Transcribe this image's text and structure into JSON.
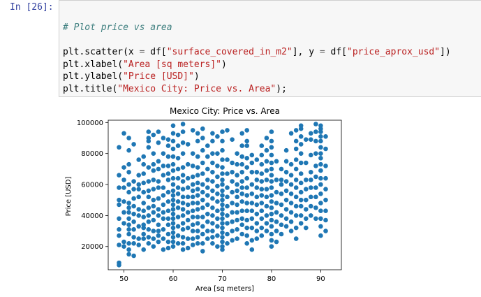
{
  "cell": {
    "prompt": "In [26]:"
  },
  "code": {
    "comment": "# Plot price vs area",
    "line2": {
      "pre": "plt.scatter(x ",
      "eq1": "=",
      "mid1": " df[",
      "s1": "\"surface_covered_in_m2\"",
      "mid2": "], y ",
      "eq2": "=",
      "mid3": " df[",
      "s2": "\"price_aprox_usd\"",
      "post": "])"
    },
    "line3": {
      "pre": "plt.xlabel(",
      "s": "\"Area [sq meters]\"",
      "post": ")"
    },
    "line4": {
      "pre": "plt.ylabel(",
      "s": "\"Price [USD]\"",
      "post": ")"
    },
    "line5": {
      "pre": "plt.title(",
      "s": "\"Mexico City: Price vs. Area\"",
      "post": ");"
    }
  },
  "colors": {
    "marker": "#1f77b4"
  },
  "chart_data": {
    "type": "scatter",
    "title": "Mexico City: Price vs. Area",
    "xlabel": "Area [sq meters]",
    "ylabel": "Price [USD]",
    "xlim": [
      46.8,
      94.2
    ],
    "ylim": [
      5000,
      101500
    ],
    "xticks": [
      50,
      60,
      70,
      80,
      90
    ],
    "yticks": [
      20000,
      40000,
      60000,
      80000,
      100000
    ],
    "xtick_labels": [
      "50",
      "60",
      "70",
      "80",
      "90"
    ],
    "ytick_labels": [
      "20000",
      "40000",
      "60000",
      "80000",
      "100000"
    ],
    "grid": false,
    "x": [
      49,
      49,
      49,
      49,
      49,
      49,
      49,
      49,
      49,
      49,
      49,
      50,
      50,
      50,
      50,
      50,
      50,
      50,
      50,
      50,
      51,
      51,
      51,
      51,
      51,
      51,
      51,
      51,
      51,
      51,
      51,
      51,
      51,
      51,
      51,
      51,
      52,
      52,
      52,
      52,
      52,
      52,
      52,
      52,
      52,
      52,
      52,
      53,
      53,
      53,
      53,
      53,
      53,
      53,
      53,
      53,
      53,
      54,
      54,
      54,
      54,
      54,
      54,
      54,
      54,
      54,
      54,
      54,
      54,
      54,
      55,
      55,
      55,
      55,
      55,
      55,
      55,
      55,
      55,
      55,
      55,
      55,
      55,
      55,
      56,
      56,
      56,
      56,
      56,
      56,
      56,
      56,
      56,
      56,
      56,
      56,
      56,
      57,
      57,
      57,
      57,
      57,
      57,
      57,
      57,
      57,
      57,
      57,
      57,
      57,
      58,
      58,
      58,
      58,
      58,
      58,
      58,
      58,
      58,
      58,
      58,
      58,
      59,
      59,
      59,
      59,
      59,
      59,
      59,
      59,
      59,
      59,
      59,
      59,
      59,
      59,
      60,
      60,
      60,
      60,
      60,
      60,
      60,
      60,
      60,
      60,
      60,
      60,
      60,
      60,
      60,
      60,
      60,
      60,
      60,
      60,
      60,
      60,
      61,
      61,
      61,
      61,
      61,
      61,
      61,
      61,
      61,
      61,
      61,
      61,
      61,
      62,
      62,
      62,
      62,
      62,
      62,
      62,
      62,
      62,
      62,
      62,
      62,
      62,
      62,
      62,
      62,
      62,
      63,
      63,
      63,
      63,
      63,
      63,
      63,
      63,
      63,
      63,
      63,
      64,
      64,
      64,
      64,
      64,
      64,
      64,
      64,
      64,
      64,
      64,
      64,
      64,
      64,
      65,
      65,
      65,
      65,
      65,
      65,
      65,
      65,
      65,
      65,
      65,
      65,
      65,
      65,
      65,
      66,
      66,
      66,
      66,
      66,
      66,
      66,
      66,
      66,
      66,
      66,
      66,
      66,
      66,
      67,
      67,
      67,
      67,
      67,
      67,
      67,
      67,
      67,
      67,
      67,
      68,
      68,
      68,
      68,
      68,
      68,
      68,
      68,
      68,
      68,
      68,
      68,
      68,
      68,
      69,
      69,
      69,
      69,
      69,
      69,
      69,
      69,
      69,
      69,
      69,
      69,
      70,
      70,
      70,
      70,
      70,
      70,
      70,
      70,
      70,
      70,
      70,
      70,
      70,
      70,
      70,
      70,
      70,
      70,
      70,
      70,
      70,
      70,
      71,
      71,
      71,
      71,
      71,
      71,
      71,
      71,
      71,
      71,
      72,
      72,
      72,
      72,
      72,
      72,
      72,
      72,
      72,
      72,
      73,
      73,
      73,
      73,
      73,
      73,
      73,
      73,
      73,
      73,
      73,
      74,
      74,
      74,
      74,
      74,
      74,
      74,
      74,
      74,
      74,
      74,
      74,
      74,
      75,
      75,
      75,
      75,
      75,
      75,
      75,
      75,
      75,
      75,
      75,
      75,
      75,
      75,
      76,
      76,
      76,
      76,
      76,
      76,
      76,
      76,
      76,
      76,
      76,
      77,
      77,
      77,
      77,
      77,
      77,
      77,
      77,
      77,
      77,
      78,
      78,
      78,
      78,
      78,
      78,
      78,
      78,
      78,
      78,
      78,
      78,
      79,
      79,
      79,
      79,
      79,
      79,
      79,
      79,
      79,
      79,
      79,
      80,
      80,
      80,
      80,
      80,
      80,
      80,
      80,
      80,
      80,
      80,
      80,
      80,
      80,
      80,
      80,
      80,
      80,
      81,
      81,
      81,
      81,
      81,
      81,
      81,
      81,
      82,
      82,
      82,
      82,
      82,
      82,
      82,
      82,
      83,
      83,
      83,
      83,
      83,
      83,
      83,
      83,
      83,
      84,
      84,
      84,
      84,
      84,
      84,
      84,
      84,
      84,
      85,
      85,
      85,
      85,
      85,
      85,
      85,
      85,
      85,
      85,
      85,
      85,
      86,
      86,
      86,
      86,
      86,
      86,
      86,
      86,
      86,
      86,
      86,
      86,
      86,
      87,
      87,
      87,
      87,
      87,
      87,
      87,
      87,
      88,
      88,
      88,
      88,
      88,
      88,
      88,
      88,
      88,
      89,
      89,
      89,
      89,
      89,
      89,
      89,
      89,
      89,
      89,
      90,
      90,
      90,
      90,
      90,
      90,
      90,
      90,
      90,
      90,
      90,
      90,
      90,
      90,
      90,
      90,
      90,
      90,
      91,
      91,
      91,
      91,
      91,
      91,
      91,
      91,
      91
    ],
    "y": [
      8000,
      9500,
      21000,
      27000,
      31000,
      38000,
      47000,
      50000,
      58000,
      66000,
      84000,
      20000,
      23000,
      35000,
      42000,
      49000,
      58000,
      63000,
      71000,
      93000,
      15000,
      18000,
      22000,
      28000,
      31000,
      34000,
      38000,
      42000,
      45000,
      48000,
      55000,
      60000,
      68000,
      73000,
      82000,
      90000,
      14000,
      22000,
      26000,
      31000,
      36000,
      41000,
      46000,
      51000,
      57000,
      62000,
      86000,
      21000,
      25000,
      33000,
      40000,
      44000,
      52000,
      57000,
      60000,
      66000,
      76000,
      18000,
      25000,
      28000,
      32000,
      34000,
      39000,
      43000,
      48000,
      55000,
      61000,
      67000,
      73000,
      78000,
      22000,
      26000,
      31000,
      36000,
      40000,
      45000,
      52000,
      56000,
      62000,
      71000,
      84000,
      88000,
      90000,
      94000,
      20000,
      25000,
      30000,
      37000,
      42000,
      46000,
      50000,
      57000,
      63000,
      69000,
      73000,
      80000,
      92000,
      23000,
      27000,
      30000,
      34000,
      40000,
      44000,
      51000,
      58000,
      62000,
      70000,
      75000,
      87000,
      94000,
      18000,
      25000,
      31000,
      38000,
      42000,
      47000,
      53000,
      58000,
      66000,
      72000,
      80000,
      90000,
      19000,
      23000,
      28000,
      34000,
      38000,
      43000,
      49000,
      55000,
      63000,
      67000,
      72000,
      78000,
      85000,
      89000,
      20000,
      23000,
      26000,
      29000,
      32000,
      35000,
      38000,
      41000,
      44000,
      47000,
      50000,
      53000,
      56000,
      60000,
      64000,
      69000,
      73000,
      78000,
      83000,
      88000,
      93000,
      98000,
      22000,
      27000,
      33000,
      39000,
      45000,
      49000,
      54000,
      58000,
      64000,
      70000,
      77000,
      85000,
      92000,
      18000,
      22000,
      26000,
      31000,
      35000,
      40000,
      44000,
      48000,
      52000,
      57000,
      62000,
      66000,
      71000,
      80000,
      87000,
      94000,
      99000,
      19000,
      25000,
      32000,
      37000,
      42000,
      47000,
      52000,
      58000,
      64000,
      73000,
      86000,
      21000,
      25000,
      30000,
      34000,
      39000,
      43000,
      48000,
      52000,
      56000,
      60000,
      65000,
      72000,
      80000,
      95000,
      22000,
      26000,
      30000,
      35000,
      39000,
      44000,
      48000,
      53000,
      57000,
      61000,
      66000,
      71000,
      78000,
      88000,
      93000,
      17000,
      22000,
      28000,
      33000,
      39000,
      45000,
      50000,
      55000,
      60000,
      67000,
      74000,
      82000,
      90000,
      96000,
      25000,
      30000,
      36000,
      41000,
      47000,
      53000,
      58000,
      63000,
      70000,
      78000,
      85000,
      22000,
      26000,
      30000,
      35000,
      40000,
      45000,
      51000,
      56000,
      62000,
      68000,
      74000,
      80000,
      88000,
      93000,
      20000,
      27000,
      33000,
      38000,
      43000,
      49000,
      54000,
      59000,
      65000,
      72000,
      80000,
      91000,
      18000,
      20000,
      23000,
      26000,
      29000,
      32000,
      35000,
      38000,
      41000,
      44000,
      47000,
      50000,
      53000,
      56000,
      60000,
      63000,
      67000,
      71000,
      76000,
      82000,
      88000,
      94000,
      22000,
      28000,
      35000,
      40000,
      46000,
      52000,
      58000,
      67000,
      76000,
      95000,
      24000,
      30000,
      36000,
      42000,
      48000,
      55000,
      62000,
      68000,
      74000,
      89000,
      25000,
      31000,
      37000,
      42000,
      47000,
      52000,
      56000,
      60000,
      66000,
      73000,
      80000,
      28000,
      34000,
      38000,
      43000,
      49000,
      54000,
      58000,
      62000,
      68000,
      73000,
      78000,
      85000,
      93000,
      22000,
      27000,
      32000,
      37000,
      43000,
      48000,
      53000,
      58000,
      64000,
      71000,
      77000,
      85000,
      88000,
      95000,
      18000,
      24000,
      32000,
      38000,
      43000,
      48000,
      54000,
      60000,
      68000,
      74000,
      79000,
      25000,
      30000,
      35000,
      41000,
      47000,
      52000,
      58000,
      63000,
      68000,
      76000,
      27000,
      32000,
      38000,
      43000,
      48000,
      53000,
      57000,
      62000,
      67000,
      73000,
      79000,
      85000,
      30000,
      35000,
      40000,
      46000,
      52000,
      57000,
      63000,
      69000,
      75000,
      82000,
      90000,
      20000,
      24000,
      28000,
      33000,
      37000,
      41000,
      45000,
      49000,
      53000,
      58000,
      62000,
      66000,
      70000,
      74000,
      79000,
      84000,
      88000,
      94000,
      23000,
      30000,
      36000,
      42000,
      48000,
      55000,
      63000,
      75000,
      28000,
      34000,
      40000,
      47000,
      54000,
      60000,
      63000,
      70000,
      33000,
      38000,
      44000,
      50000,
      56000,
      62000,
      68000,
      75000,
      82000,
      30000,
      36000,
      42000,
      48000,
      54000,
      60000,
      66000,
      73000,
      93000,
      25000,
      32000,
      40000,
      46000,
      52000,
      58000,
      63000,
      70000,
      76000,
      83000,
      88000,
      95000,
      35000,
      40000,
      46000,
      50000,
      55000,
      61000,
      67000,
      74000,
      80000,
      86000,
      91000,
      96000,
      98000,
      32000,
      38000,
      44000,
      50000,
      57000,
      63000,
      74000,
      89000,
      40000,
      46000,
      52000,
      58000,
      63000,
      68000,
      79000,
      89000,
      93000,
      38000,
      45000,
      52000,
      58000,
      65000,
      72000,
      80000,
      88000,
      94000,
      99000,
      27000,
      33000,
      38000,
      43000,
      48000,
      54000,
      60000,
      64000,
      69000,
      73000,
      77000,
      80000,
      84000,
      88000,
      91000,
      94000,
      96000,
      98000,
      30000,
      37000,
      43000,
      50000,
      57000,
      64000,
      72000,
      83000,
      91000
    ]
  }
}
